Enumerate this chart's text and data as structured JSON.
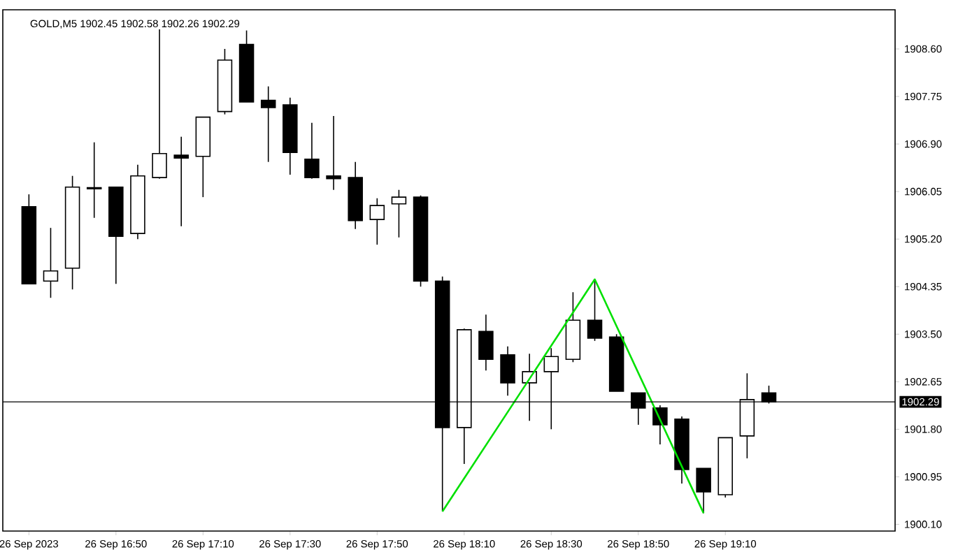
{
  "chart_data": {
    "type": "candlestick",
    "title": "GOLD,M5  1902.45 1902.58 1902.26 1902.29",
    "x": [
      "2023-09-26T16:30",
      "2023-09-26T16:35",
      "2023-09-26T16:40",
      "2023-09-26T16:45",
      "2023-09-26T16:50",
      "2023-09-26T16:55",
      "2023-09-26T17:00",
      "2023-09-26T17:05",
      "2023-09-26T17:10",
      "2023-09-26T17:15",
      "2023-09-26T17:20",
      "2023-09-26T17:25",
      "2023-09-26T17:30",
      "2023-09-26T17:35",
      "2023-09-26T17:40",
      "2023-09-26T17:45",
      "2023-09-26T17:50",
      "2023-09-26T17:55",
      "2023-09-26T18:00",
      "2023-09-26T18:05",
      "2023-09-26T18:10",
      "2023-09-26T18:15",
      "2023-09-26T18:20",
      "2023-09-26T18:25",
      "2023-09-26T18:30",
      "2023-09-26T18:35",
      "2023-09-26T18:40",
      "2023-09-26T18:45",
      "2023-09-26T18:50",
      "2023-09-26T18:55",
      "2023-09-26T19:00",
      "2023-09-26T19:05",
      "2023-09-26T19:10",
      "2023-09-26T19:15",
      "2023-09-26T19:20"
    ],
    "ohlc": [
      [
        1905.78,
        1906.0,
        1904.4,
        1904.4
      ],
      [
        1904.45,
        1905.4,
        1904.15,
        1904.63
      ],
      [
        1904.68,
        1906.33,
        1904.3,
        1906.13
      ],
      [
        1906.12,
        1906.93,
        1905.58,
        1906.1
      ],
      [
        1906.13,
        1906.13,
        1904.4,
        1905.25
      ],
      [
        1905.3,
        1906.53,
        1905.2,
        1906.33
      ],
      [
        1906.3,
        1908.95,
        1906.28,
        1906.73
      ],
      [
        1906.7,
        1907.03,
        1905.43,
        1906.65
      ],
      [
        1906.68,
        1907.38,
        1905.95,
        1907.38
      ],
      [
        1907.48,
        1908.6,
        1907.43,
        1908.4
      ],
      [
        1908.68,
        1908.93,
        1907.65,
        1907.65
      ],
      [
        1907.68,
        1907.93,
        1906.58,
        1907.55
      ],
      [
        1907.6,
        1907.73,
        1906.35,
        1906.75
      ],
      [
        1906.63,
        1907.28,
        1906.28,
        1906.3
      ],
      [
        1906.33,
        1907.4,
        1906.08,
        1906.28
      ],
      [
        1906.3,
        1906.58,
        1905.38,
        1905.53
      ],
      [
        1905.55,
        1905.93,
        1905.1,
        1905.8
      ],
      [
        1905.83,
        1906.08,
        1905.23,
        1905.95
      ],
      [
        1905.95,
        1905.98,
        1904.35,
        1904.45
      ],
      [
        1904.45,
        1904.53,
        1900.33,
        1901.83
      ],
      [
        1901.83,
        1903.6,
        1901.18,
        1903.58
      ],
      [
        1903.55,
        1903.85,
        1902.85,
        1903.05
      ],
      [
        1903.13,
        1903.28,
        1902.4,
        1902.63
      ],
      [
        1902.63,
        1903.15,
        1901.95,
        1902.83
      ],
      [
        1902.83,
        1903.25,
        1901.8,
        1903.1
      ],
      [
        1903.05,
        1904.25,
        1903.0,
        1903.75
      ],
      [
        1903.75,
        1904.48,
        1903.38,
        1903.43
      ],
      [
        1903.45,
        1903.5,
        1902.48,
        1902.48
      ],
      [
        1902.45,
        1902.45,
        1901.88,
        1902.18
      ],
      [
        1902.18,
        1902.23,
        1901.53,
        1901.88
      ],
      [
        1901.98,
        1902.03,
        1900.83,
        1901.08
      ],
      [
        1901.1,
        1901.1,
        1900.3,
        1900.68
      ],
      [
        1900.63,
        1901.65,
        1900.58,
        1901.65
      ],
      [
        1901.68,
        1902.8,
        1901.28,
        1902.33
      ],
      [
        1902.45,
        1902.58,
        1902.26,
        1902.29
      ]
    ],
    "series": [
      {
        "type": "line",
        "color": "#00e000",
        "x": [
          "2023-09-26T18:05",
          "2023-09-26T18:40",
          "2023-09-26T19:05"
        ],
        "values": [
          1900.33,
          1904.48,
          1900.3
        ]
      }
    ],
    "xlim": [
      "2023-09-26T16:24",
      "2023-09-26T19:49"
    ],
    "ylim": [
      1899.98,
      1909.3
    ],
    "xticks": [
      {
        "value": "2023-09-26T16:30",
        "label": "26 Sep 2023"
      },
      {
        "value": "2023-09-26T16:50",
        "label": "26 Sep 16:50"
      },
      {
        "value": "2023-09-26T17:10",
        "label": "26 Sep 17:10"
      },
      {
        "value": "2023-09-26T17:30",
        "label": "26 Sep 17:30"
      },
      {
        "value": "2023-09-26T17:50",
        "label": "26 Sep 17:50"
      },
      {
        "value": "2023-09-26T18:10",
        "label": "26 Sep 18:10"
      },
      {
        "value": "2023-09-26T18:30",
        "label": "26 Sep 18:30"
      },
      {
        "value": "2023-09-26T18:50",
        "label": "26 Sep 18:50"
      },
      {
        "value": "2023-09-26T19:10",
        "label": "26 Sep 19:10"
      }
    ],
    "yticks": [
      {
        "value": 1900.1,
        "label": "1900.10"
      },
      {
        "value": 1900.95,
        "label": "1900.95"
      },
      {
        "value": 1901.8,
        "label": "1901.80"
      },
      {
        "value": 1902.65,
        "label": "1902.65"
      },
      {
        "value": 1903.5,
        "label": "1903.50"
      },
      {
        "value": 1904.35,
        "label": "1904.35"
      },
      {
        "value": 1905.2,
        "label": "1905.20"
      },
      {
        "value": 1906.05,
        "label": "1906.05"
      },
      {
        "value": 1906.9,
        "label": "1906.90"
      },
      {
        "value": 1907.75,
        "label": "1907.75"
      },
      {
        "value": 1908.6,
        "label": "1908.60"
      }
    ],
    "ref_lines": [
      {
        "axis": "y",
        "value": 1902.29,
        "label": "1902.29",
        "color": "#000000"
      }
    ]
  }
}
